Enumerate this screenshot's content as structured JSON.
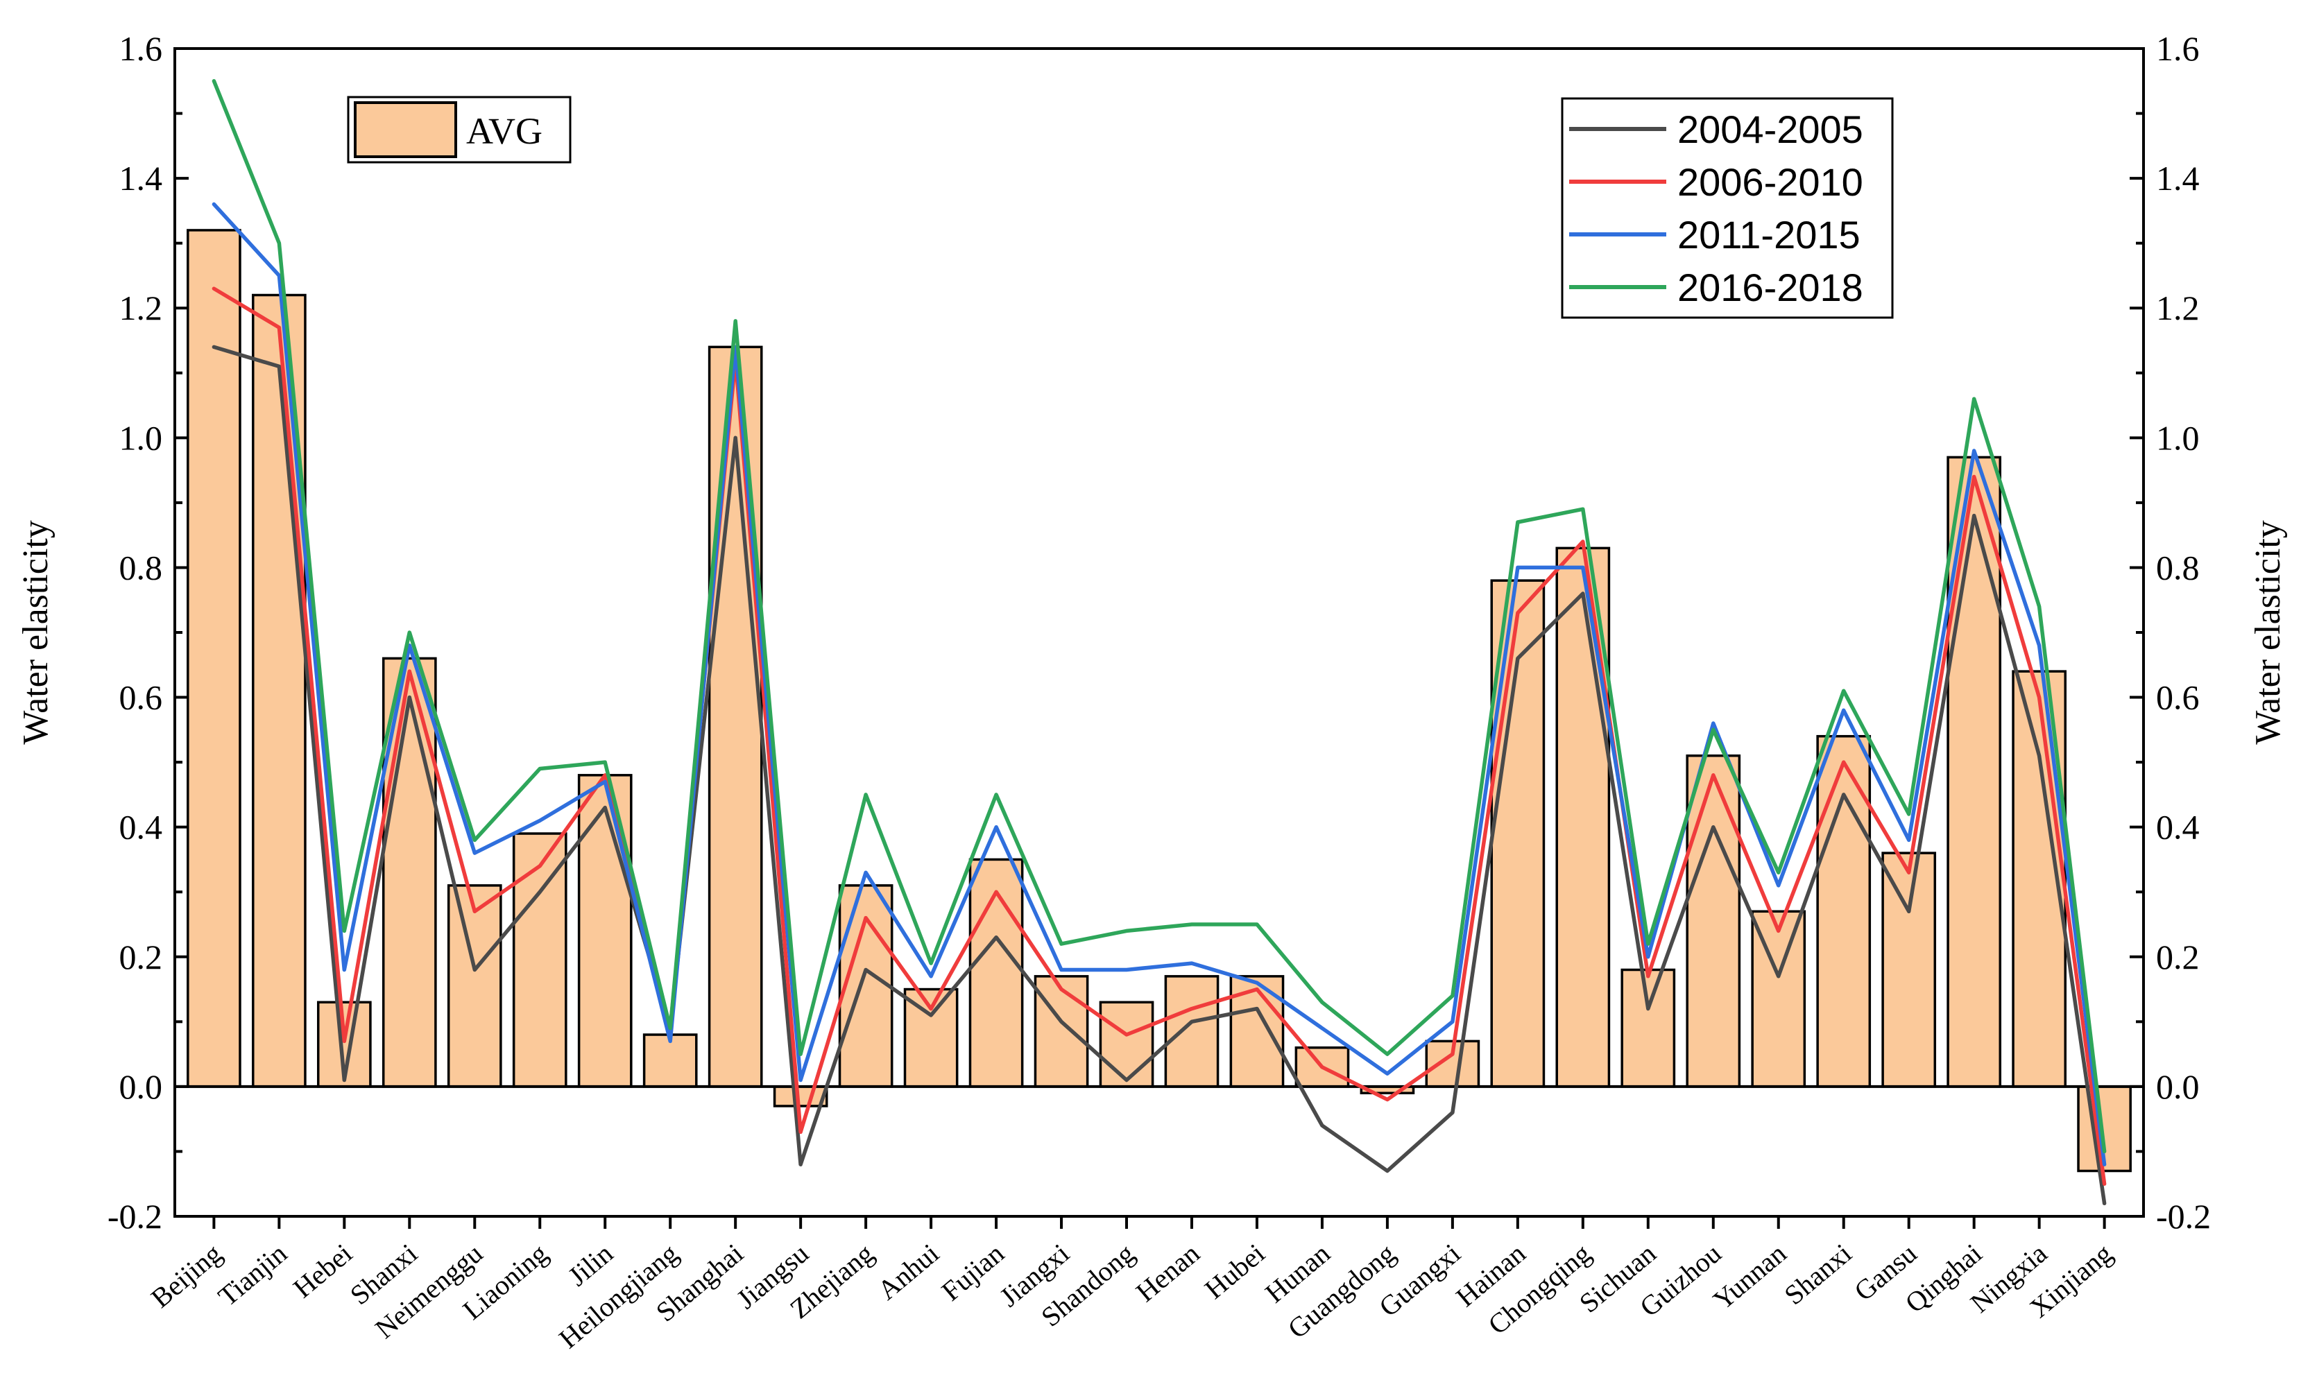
{
  "chart_data": {
    "type": "bar+line",
    "title": "",
    "xlabel": "",
    "ylabel_left": "Water elasticity",
    "ylabel_right": "Water elasticity",
    "ylim": [
      -0.2,
      1.6
    ],
    "yticks": [
      -0.2,
      0.0,
      0.2,
      0.4,
      0.6,
      0.8,
      1.0,
      1.2,
      1.4,
      1.6
    ],
    "ytick_labels": [
      "-0.2",
      "0.0",
      "0.2",
      "0.4",
      "0.6",
      "0.8",
      "1.0",
      "1.2",
      "1.4",
      "1.6"
    ],
    "categories": [
      "Beijing",
      "Tianjin",
      "Hebei",
      "Shanxi",
      "Neimenggu",
      "Liaoning",
      "Jilin",
      "Heilongjiang",
      "Shanghai",
      "Jiangsu",
      "Zhejiang",
      "Anhui",
      "Fujian",
      "Jiangxi",
      "Shandong",
      "Henan",
      "Hubei",
      "Hunan",
      "Guangdong",
      "Guangxi",
      "Hainan",
      "Chongqing",
      "Sichuan",
      "Guizhou",
      "Yunnan",
      "Shanxi",
      "Gansu",
      "Qinghai",
      "Ningxia",
      "Xinjiang"
    ],
    "bars": {
      "name": "AVG",
      "color": "#fbc99a",
      "values": [
        1.32,
        1.22,
        0.13,
        0.66,
        0.31,
        0.39,
        0.48,
        0.08,
        1.14,
        -0.03,
        0.31,
        0.15,
        0.35,
        0.17,
        0.13,
        0.17,
        0.17,
        0.06,
        -0.01,
        0.07,
        0.78,
        0.83,
        0.18,
        0.51,
        0.27,
        0.54,
        0.36,
        0.97,
        0.64,
        -0.13
      ]
    },
    "series": [
      {
        "name": "2004-2005",
        "color": "#4a4a4a",
        "values": [
          1.14,
          1.11,
          0.01,
          0.6,
          0.18,
          0.3,
          0.43,
          0.09,
          1.0,
          -0.12,
          0.18,
          0.11,
          0.23,
          0.1,
          0.01,
          0.1,
          0.12,
          -0.06,
          -0.13,
          -0.04,
          0.66,
          0.76,
          0.12,
          0.4,
          0.17,
          0.45,
          0.27,
          0.88,
          0.51,
          -0.18
        ]
      },
      {
        "name": "2006-2010",
        "color": "#f03c3c",
        "values": [
          1.23,
          1.17,
          0.07,
          0.64,
          0.27,
          0.34,
          0.48,
          0.09,
          1.12,
          -0.07,
          0.26,
          0.12,
          0.3,
          0.15,
          0.08,
          0.12,
          0.15,
          0.03,
          -0.02,
          0.05,
          0.73,
          0.84,
          0.17,
          0.48,
          0.24,
          0.5,
          0.33,
          0.94,
          0.6,
          -0.15
        ]
      },
      {
        "name": "2011-2015",
        "color": "#2f6fdd",
        "values": [
          1.36,
          1.25,
          0.18,
          0.68,
          0.36,
          0.41,
          0.47,
          0.07,
          1.14,
          0.01,
          0.33,
          0.17,
          0.4,
          0.18,
          0.18,
          0.19,
          0.16,
          0.09,
          0.02,
          0.1,
          0.8,
          0.8,
          0.2,
          0.56,
          0.31,
          0.58,
          0.38,
          0.98,
          0.68,
          -0.12
        ]
      },
      {
        "name": "2016-2018",
        "color": "#2ea65a",
        "values": [
          1.55,
          1.3,
          0.24,
          0.7,
          0.38,
          0.49,
          0.5,
          0.09,
          1.18,
          0.05,
          0.45,
          0.19,
          0.45,
          0.22,
          0.24,
          0.25,
          0.25,
          0.13,
          0.05,
          0.14,
          0.87,
          0.89,
          0.22,
          0.55,
          0.33,
          0.61,
          0.42,
          1.06,
          0.74,
          -0.1
        ]
      }
    ],
    "legend_bar_label": "AVG",
    "legend_line_labels": [
      "2004-2005",
      "2006-2010",
      "2011-2015",
      "2016-2018"
    ]
  }
}
